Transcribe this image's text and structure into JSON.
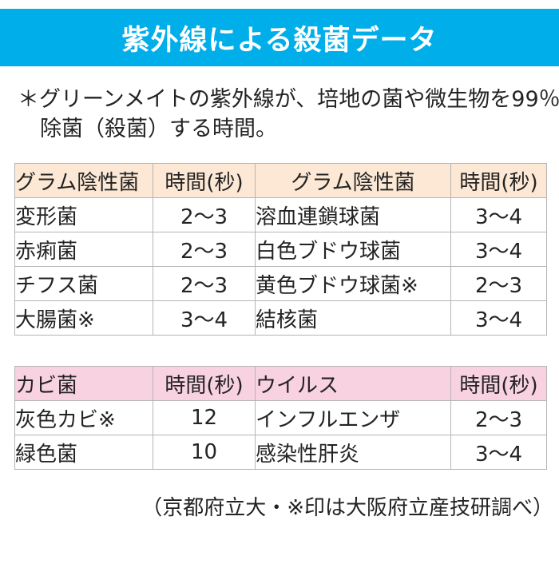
{
  "banner": {
    "title": "紫外線による殺菌データ"
  },
  "intro": {
    "line1": "＊グリーンメイトの紫外線が、培地の菌や微生物を99％",
    "line2": "除菌（殺菌）する時間。"
  },
  "tables": [
    {
      "name": "gram-negative-bacteria",
      "columns": [
        "グラム陰性菌",
        "時間(秒)",
        "グラム陰性菌",
        "時間(秒)"
      ],
      "rows": [
        [
          "変形菌",
          "2〜3",
          "溶血連鎖球菌",
          "3〜4"
        ],
        [
          "赤痢菌",
          "2〜3",
          "白色ブドウ球菌",
          "3〜4"
        ],
        [
          "チフス菌",
          "2〜3",
          "黄色ブドウ球菌※",
          "2〜3"
        ],
        [
          "大腸菌※",
          "3〜4",
          "結核菌",
          "3〜4"
        ]
      ]
    },
    {
      "name": "mold-and-virus",
      "columns": [
        "カビ菌",
        "時間(秒)",
        "ウイルス",
        "時間(秒)"
      ],
      "rows": [
        [
          "灰色カビ※",
          "12",
          "インフルエンザ",
          "2〜3"
        ],
        [
          "緑色菌",
          "10",
          "感染性肝炎",
          "3〜4"
        ]
      ]
    }
  ],
  "footer": {
    "note": "（京都府立大・※印は大阪府立産技研調べ）"
  },
  "colors": {
    "banner_blue": "#00aeea",
    "table1_header_bg": "#fce8d5",
    "table2_header_bg": "#f8d2e0",
    "border_gray": "#b5b5b5",
    "text": "#232323",
    "banner_text": "#ffffff"
  }
}
